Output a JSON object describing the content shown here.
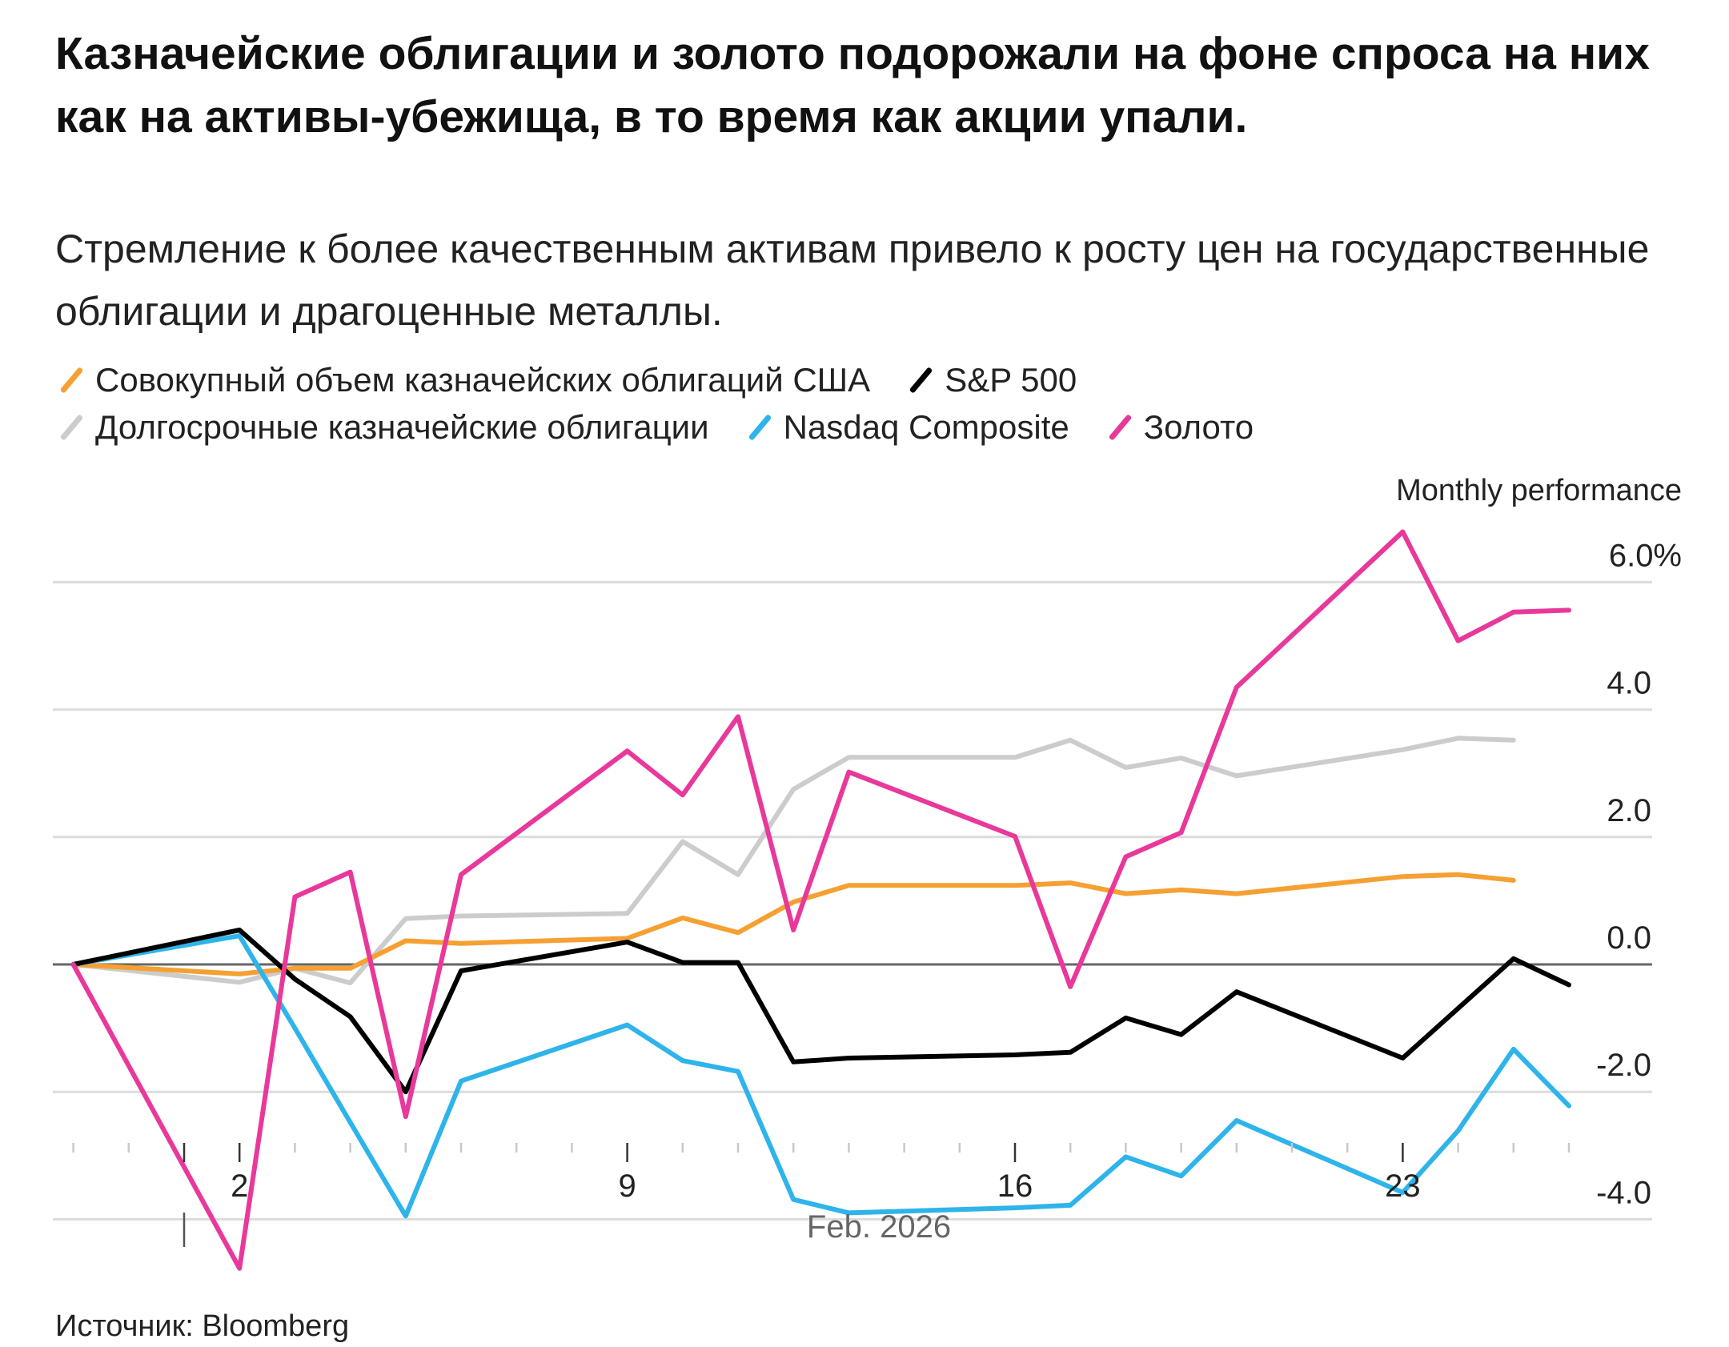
{
  "title": "Казначейские облигации и золото подорожали на фоне спроса на них как на активы-убежища, в то время как акции упали.",
  "subtitle": "Стремление к более качественным активам привело к росту цен на государственные облигации и драгоценные металлы.",
  "source": "Источник: Bloomberg",
  "chart_data": {
    "type": "line",
    "ylabel": "Monthly performance",
    "xlabel": "Feb. 2026",
    "ylim": [
      -4.8,
      6.8
    ],
    "yticks": [
      6,
      4,
      2,
      0,
      -2,
      -4
    ],
    "ytick_labels": [
      "6.0%",
      "4.0",
      "2.0",
      "0.0",
      "-2.0",
      "-4.0"
    ],
    "xtick_labels": [
      {
        "date": "2026-02-02",
        "label": "2"
      },
      {
        "date": "2026-02-09",
        "label": "9"
      },
      {
        "date": "2026-02-16",
        "label": "16"
      },
      {
        "date": "2026-02-23",
        "label": "23"
      }
    ],
    "xaxis_range": [
      "2026-01-30",
      "2026-02-26"
    ],
    "grid": true,
    "legend_placement": "top",
    "x": [
      "2026-01-30",
      "2026-02-02",
      "2026-02-03",
      "2026-02-04",
      "2026-02-05",
      "2026-02-06",
      "2026-02-09",
      "2026-02-10",
      "2026-02-11",
      "2026-02-12",
      "2026-02-13",
      "2026-02-16",
      "2026-02-17",
      "2026-02-18",
      "2026-02-19",
      "2026-02-20",
      "2026-02-23",
      "2026-02-24",
      "2026-02-25",
      "2026-02-26"
    ],
    "series": [
      {
        "name": "Совокупный объем казначейских облигаций США",
        "color": "#f5a033",
        "values": [
          0,
          -0.15,
          -0.06,
          -0.06,
          0.37,
          0.33,
          0.41,
          0.73,
          0.5,
          0.98,
          1.24,
          1.24,
          1.28,
          1.11,
          1.17,
          1.11,
          1.38,
          1.41,
          1.32,
          null
        ]
      },
      {
        "name": "S&P 500",
        "color": "#000000",
        "values": [
          0,
          0.54,
          -0.23,
          -0.82,
          -2.0,
          -0.1,
          0.35,
          0.03,
          0.03,
          -1.53,
          -1.47,
          -1.42,
          -1.38,
          -0.84,
          -1.1,
          -0.43,
          -1.47,
          -0.69,
          0.09,
          -0.32
        ]
      },
      {
        "name": "Долгосрочные казначейские облигации",
        "color": "#cccccc",
        "values": [
          0,
          -0.28,
          -0.06,
          -0.29,
          0.72,
          0.76,
          0.8,
          1.93,
          1.41,
          2.75,
          3.25,
          3.25,
          3.52,
          3.09,
          3.24,
          2.96,
          3.37,
          3.55,
          3.52,
          null
        ]
      },
      {
        "name": "Nasdaq Composite",
        "color": "#2eb4ea",
        "values": [
          0,
          0.45,
          -1.0,
          -2.48,
          -3.95,
          -1.83,
          -0.95,
          -1.51,
          -1.68,
          -3.69,
          -3.9,
          -3.82,
          -3.78,
          -3.02,
          -3.32,
          -2.45,
          -3.58,
          -2.61,
          -1.33,
          -2.22
        ]
      },
      {
        "name": "Золото",
        "color": "#e8399b",
        "values": [
          0,
          -4.77,
          1.06,
          1.45,
          -2.39,
          1.41,
          3.35,
          2.66,
          3.89,
          0.54,
          3.02,
          2.01,
          -0.35,
          1.69,
          2.07,
          4.35,
          6.79,
          5.08,
          5.53,
          5.56
        ]
      }
    ]
  },
  "legend_rows": [
    [
      0,
      1
    ],
    [
      2,
      3,
      4
    ]
  ]
}
